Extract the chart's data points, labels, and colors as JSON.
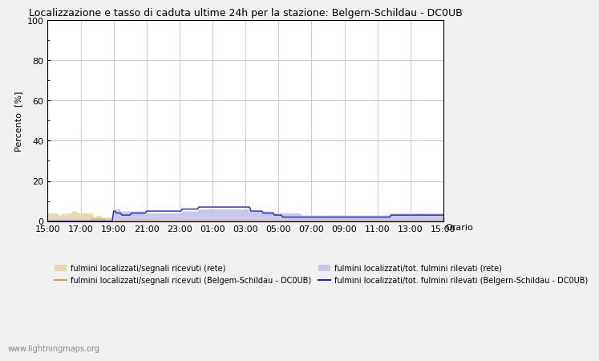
{
  "title": "Localizzazione e tasso di caduta ultime 24h per la stazione: Belgern-Schildau - DC0UB",
  "ylabel": "Percento  [%]",
  "xlabel_right": "Orario",
  "watermark": "www.lightningmaps.org",
  "yticks": [
    0,
    20,
    40,
    60,
    80,
    100
  ],
  "ytick_minor": [
    10,
    30,
    50,
    70,
    90
  ],
  "xtick_labels": [
    "15:00",
    "17:00",
    "19:00",
    "21:00",
    "23:00",
    "01:00",
    "03:00",
    "05:00",
    "07:00",
    "09:00",
    "11:00",
    "13:00",
    "15:00"
  ],
  "background_color": "#f0f0f0",
  "plot_bg_color": "#ffffff",
  "grid_color": "#cccccc",
  "fill_rete_color": "#e8d8b0",
  "fill_station_color": "#c8c8e8",
  "line_rete_color": "#d4a050",
  "line_station_color": "#2020cc",
  "legend_labels": [
    "fulmini localizzati/segnali ricevuti (rete)",
    "fulmini localizzati/segnali ricevuti (Belgem-Schildau - DC0UB)",
    "fulmini localizzati/tot. fulmini rilevati (rete)",
    "fulmini localizzati/tot. fulmini rilevati (Belgern-Schildau - DC0UB)"
  ],
  "num_points": 289,
  "rete_fill_data": [
    4,
    4,
    4,
    4,
    4,
    4,
    4,
    4,
    3,
    3,
    3,
    4,
    4,
    3,
    4,
    4,
    4,
    4,
    5,
    5,
    5,
    5,
    4,
    4,
    4,
    4,
    4,
    4,
    4,
    4,
    4,
    4,
    4,
    3,
    2,
    2,
    3,
    3,
    3,
    2,
    2,
    2,
    2,
    2,
    2,
    2,
    2,
    2,
    2,
    2,
    2,
    2,
    2,
    2,
    2,
    2,
    2,
    2,
    2,
    2,
    2,
    2,
    2,
    2,
    2,
    2,
    2,
    2,
    2,
    2,
    2,
    2,
    2,
    2,
    2,
    2,
    2,
    2,
    2,
    2,
    2,
    2,
    2,
    2,
    2,
    2,
    2,
    2,
    2,
    2,
    2,
    2,
    2,
    2,
    2,
    2,
    2,
    2,
    2,
    2,
    2,
    2,
    2,
    2,
    2,
    2,
    2,
    2,
    2,
    2,
    2,
    2,
    2,
    2,
    2,
    2,
    2,
    2,
    2,
    2,
    2,
    2,
    2,
    2,
    2,
    2,
    2,
    2,
    2,
    2,
    2,
    2,
    2,
    2,
    2,
    2,
    2,
    2,
    2,
    2,
    2,
    2,
    2,
    2,
    2,
    2,
    2,
    2,
    2,
    2,
    2,
    2,
    2,
    2,
    2,
    2,
    2,
    2,
    2,
    2,
    2,
    2,
    2,
    2,
    2,
    2,
    2,
    2,
    2,
    2,
    2,
    2,
    2,
    2,
    2,
    2,
    2,
    2,
    2,
    2,
    2,
    2,
    2,
    2,
    2,
    2,
    2,
    2,
    2,
    2,
    2,
    2,
    2,
    2,
    2,
    2,
    2,
    2,
    2,
    2,
    2,
    2,
    2,
    2,
    2,
    2,
    2,
    2,
    2,
    2,
    2,
    2,
    2,
    2,
    2,
    2,
    2,
    2,
    2,
    2,
    2,
    2,
    2,
    2,
    2,
    2,
    2,
    2,
    2,
    2,
    2,
    2,
    2,
    2,
    2,
    2,
    2,
    2,
    2,
    2,
    2,
    2,
    2,
    2,
    2,
    2,
    2,
    2,
    2,
    2,
    2,
    2,
    2,
    2,
    2,
    2,
    2,
    2,
    2,
    2,
    2,
    2,
    2,
    2,
    2,
    2,
    2,
    2,
    2,
    2,
    2,
    2,
    2,
    2,
    2,
    2,
    2,
    2,
    2,
    2,
    2,
    2,
    2,
    2,
    2,
    2,
    2,
    2,
    2
  ],
  "rete_line_data": [
    0,
    0,
    0,
    0,
    0,
    0,
    0,
    0,
    0,
    0,
    0,
    0,
    0,
    0,
    0,
    0,
    0,
    0,
    0,
    0,
    0,
    0,
    0,
    0,
    0,
    0,
    0,
    0,
    0,
    0,
    0,
    0,
    1,
    1,
    1,
    1,
    1,
    1,
    1,
    1,
    1,
    1,
    0,
    0,
    0,
    0,
    0,
    0,
    0,
    0,
    0,
    0,
    0,
    0,
    0,
    0,
    0,
    0,
    0,
    0,
    0,
    0,
    0,
    0,
    0,
    0,
    0,
    0,
    0,
    0,
    0,
    0,
    0,
    0,
    0,
    0,
    0,
    0,
    0,
    0,
    0,
    0,
    0,
    0,
    0,
    0,
    0,
    0,
    0,
    0,
    0,
    0,
    0,
    0,
    0,
    0,
    0,
    0,
    0,
    0,
    0,
    0,
    0,
    0,
    0,
    0,
    0,
    0,
    0,
    0,
    0,
    0,
    0,
    0,
    0,
    0,
    0,
    0,
    0,
    0,
    0,
    0,
    0,
    0,
    0,
    0,
    0,
    0,
    0,
    0,
    0,
    0,
    0,
    0,
    0,
    0,
    0,
    0,
    0,
    0,
    0,
    0,
    0,
    0,
    0,
    0,
    0,
    0,
    0,
    0,
    0,
    0,
    0,
    0,
    0,
    0,
    0,
    0,
    0,
    0,
    0,
    0,
    0,
    0,
    0,
    0,
    0,
    0,
    0,
    0,
    0,
    0,
    0,
    0,
    0,
    0,
    0,
    0,
    0,
    0,
    0,
    0,
    0,
    0,
    0,
    0,
    0,
    0,
    0,
    0,
    0,
    0,
    0,
    0,
    0,
    0,
    0,
    0,
    0,
    0,
    0,
    0,
    0,
    0,
    0,
    0,
    0,
    0,
    0,
    0,
    0,
    0,
    0,
    0,
    0,
    0,
    0,
    0,
    0,
    0,
    0,
    0,
    0,
    0,
    0,
    0,
    0,
    0,
    0,
    0,
    0,
    0,
    0,
    0,
    0,
    0,
    0,
    0,
    0,
    0,
    0,
    0,
    0,
    0,
    0,
    0,
    0,
    0,
    0,
    0,
    0,
    0,
    0,
    0,
    0,
    0,
    0,
    0,
    0,
    0,
    0,
    0,
    0,
    0,
    0,
    0,
    0,
    0,
    0,
    0,
    0,
    0,
    0,
    0,
    0,
    0,
    0,
    0,
    0,
    0,
    0,
    0,
    0,
    0,
    0,
    0,
    0,
    0,
    0
  ],
  "station_fill_data": [
    0,
    0,
    0,
    0,
    0,
    0,
    0,
    0,
    0,
    0,
    0,
    0,
    0,
    0,
    0,
    0,
    0,
    0,
    0,
    0,
    0,
    0,
    0,
    0,
    0,
    0,
    0,
    0,
    0,
    0,
    0,
    0,
    0,
    0,
    0,
    0,
    0,
    0,
    0,
    0,
    0,
    0,
    0,
    0,
    0,
    0,
    0,
    0,
    6,
    6,
    6,
    6,
    6,
    5,
    5,
    5,
    5,
    5,
    5,
    5,
    5,
    5,
    5,
    5,
    5,
    5,
    5,
    5,
    5,
    5,
    4,
    4,
    4,
    4,
    4,
    4,
    4,
    4,
    4,
    4,
    4,
    4,
    4,
    4,
    4,
    4,
    4,
    4,
    4,
    4,
    4,
    4,
    4,
    4,
    4,
    4,
    4,
    4,
    5,
    5,
    5,
    5,
    5,
    5,
    5,
    5,
    5,
    5,
    5,
    5,
    6,
    6,
    6,
    6,
    6,
    6,
    6,
    6,
    6,
    6,
    6,
    6,
    6,
    6,
    6,
    6,
    6,
    6,
    6,
    6,
    6,
    6,
    6,
    6,
    6,
    6,
    6,
    6,
    6,
    6,
    6,
    6,
    6,
    6,
    6,
    6,
    6,
    6,
    5,
    5,
    5,
    5,
    5,
    5,
    5,
    5,
    5,
    5,
    5,
    5,
    5,
    5,
    5,
    5,
    5,
    4,
    4,
    4,
    4,
    4,
    4,
    4,
    4,
    4,
    4,
    4,
    4,
    4,
    4,
    4,
    4,
    4,
    4,
    4,
    4,
    3,
    3,
    3,
    3,
    3,
    3,
    3,
    3,
    3,
    3,
    3,
    3,
    3,
    3,
    3,
    3,
    3,
    3,
    3,
    3,
    3,
    3,
    3,
    3,
    3,
    3,
    3,
    3,
    3,
    3,
    3,
    3,
    3,
    3,
    3,
    3,
    3,
    3,
    3,
    3,
    3,
    3,
    3,
    3,
    3,
    3,
    3,
    3,
    3,
    3,
    3,
    3,
    3,
    3,
    3,
    3,
    3,
    3,
    3,
    3,
    3,
    3,
    3,
    3,
    4,
    4,
    4,
    4,
    4,
    4,
    4,
    4,
    4,
    4,
    4,
    4,
    4,
    4,
    4,
    4,
    4,
    4,
    4,
    4,
    4,
    4,
    4,
    4,
    4,
    4,
    4,
    4,
    4,
    4,
    4,
    4,
    4,
    4,
    4,
    4,
    4,
    4,
    4,
    4
  ],
  "station_line_data": [
    0,
    0,
    0,
    0,
    0,
    0,
    0,
    0,
    0,
    0,
    0,
    0,
    0,
    0,
    0,
    0,
    0,
    0,
    0,
    0,
    0,
    0,
    0,
    0,
    0,
    0,
    0,
    0,
    0,
    0,
    0,
    0,
    0,
    0,
    0,
    0,
    0,
    0,
    0,
    0,
    0,
    0,
    0,
    0,
    0,
    0,
    0,
    0,
    5,
    5,
    4,
    4,
    4,
    4,
    3,
    3,
    3,
    3,
    3,
    3,
    3,
    4,
    4,
    4,
    4,
    4,
    4,
    4,
    4,
    4,
    4,
    4,
    5,
    5,
    5,
    5,
    5,
    5,
    5,
    5,
    5,
    5,
    5,
    5,
    5,
    5,
    5,
    5,
    5,
    5,
    5,
    5,
    5,
    5,
    5,
    5,
    5,
    5,
    6,
    6,
    6,
    6,
    6,
    6,
    6,
    6,
    6,
    6,
    6,
    6,
    7,
    7,
    7,
    7,
    7,
    7,
    7,
    7,
    7,
    7,
    7,
    7,
    7,
    7,
    7,
    7,
    7,
    7,
    7,
    7,
    7,
    7,
    7,
    7,
    7,
    7,
    7,
    7,
    7,
    7,
    7,
    7,
    7,
    7,
    7,
    7,
    7,
    7,
    5,
    5,
    5,
    5,
    5,
    5,
    5,
    5,
    5,
    4,
    4,
    4,
    4,
    4,
    4,
    4,
    4,
    3,
    3,
    3,
    3,
    3,
    3,
    2,
    2,
    2,
    2,
    2,
    2,
    2,
    2,
    2,
    2,
    2,
    2,
    2,
    2,
    2,
    2,
    2,
    2,
    2,
    2,
    2,
    2,
    2,
    2,
    2,
    2,
    2,
    2,
    2,
    2,
    2,
    2,
    2,
    2,
    2,
    2,
    2,
    2,
    2,
    2,
    2,
    2,
    2,
    2,
    2,
    2,
    2,
    2,
    2,
    2,
    2,
    2,
    2,
    2,
    2,
    2,
    2,
    2,
    2,
    2,
    2,
    2,
    2,
    2,
    2,
    2,
    2,
    2,
    2,
    2,
    2,
    2,
    2,
    2,
    2,
    2,
    2,
    2,
    2,
    3,
    3,
    3,
    3,
    3,
    3,
    3,
    3,
    3,
    3,
    3,
    3,
    3,
    3,
    3,
    3,
    3,
    3,
    3,
    3,
    3,
    3,
    3,
    3,
    3,
    3,
    3,
    3,
    3,
    3,
    3,
    3,
    3,
    3,
    3,
    3,
    3,
    3,
    3
  ]
}
